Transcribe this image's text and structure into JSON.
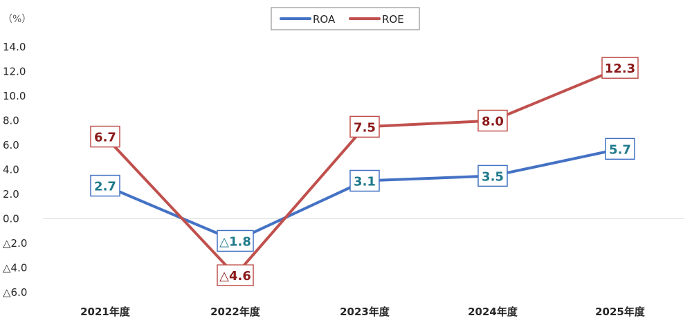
{
  "chart_data": {
    "type": "line",
    "unit_label": "（%）",
    "categories": [
      "2021年度",
      "2022年度",
      "2023年度",
      "2024年度",
      "2025年度"
    ],
    "series": [
      {
        "name": "ROA",
        "color": "#4472C4",
        "label_color": "#1F7A8C",
        "values": [
          2.7,
          -1.8,
          3.1,
          3.5,
          5.7
        ],
        "labels": [
          "2.7",
          "△1.8",
          "3.1",
          "3.5",
          "5.7"
        ]
      },
      {
        "name": "ROE",
        "color": "#C0504D",
        "label_color": "#8B1A1A",
        "values": [
          6.7,
          -4.6,
          7.5,
          8.0,
          12.3
        ],
        "labels": [
          "6.7",
          "△4.6",
          "7.5",
          "8.0",
          "12.3"
        ]
      }
    ],
    "yticks": [
      14,
      12,
      10,
      8,
      6,
      4,
      2,
      0,
      -2,
      -4,
      -6
    ],
    "ytick_labels": [
      "14.0",
      "12.0",
      "10.0",
      "8.0",
      "6.0",
      "4.0",
      "2.0",
      "0.0",
      "△2.0",
      "△4.0",
      "△6.0"
    ],
    "ylim": [
      -6,
      14
    ],
    "zero_line": true,
    "legend_position": "top-center"
  }
}
